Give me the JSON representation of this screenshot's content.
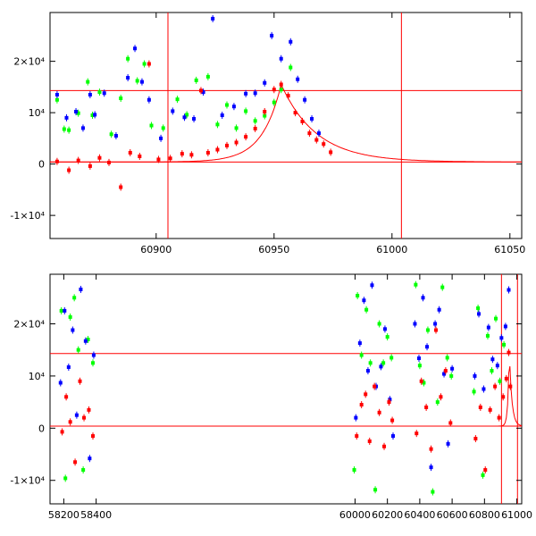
{
  "chart_data": [
    {
      "type": "scatter",
      "title": "",
      "xlabel": "",
      "ylabel": "",
      "xlim": [
        60855,
        61055
      ],
      "ylim": [
        -14500,
        29500
      ],
      "grid": false,
      "x_ticks": [
        {
          "value": 60900,
          "label": "60900"
        },
        {
          "value": 60950,
          "label": "60950"
        },
        {
          "value": 61000,
          "label": "61000"
        },
        {
          "value": 61050,
          "label": "61050"
        }
      ],
      "y_ticks": [
        {
          "value": -10000,
          "label": "-1×10⁴"
        },
        {
          "value": 0,
          "label": "0"
        },
        {
          "value": 10000,
          "label": "10⁴"
        },
        {
          "value": 20000,
          "label": "2×10⁴"
        }
      ],
      "reference_lines": {
        "horizontal": [
          14300,
          400
        ],
        "vertical": [
          60905,
          61004
        ]
      },
      "model_curve": {
        "peak_x": 60953,
        "peak_y": 15500,
        "baseline": 400,
        "rise_width": 8,
        "decay_width": 15
      },
      "series": [
        {
          "name": "green",
          "color": "#00ff00",
          "points": [
            [
              60858,
              12500
            ],
            [
              60861,
              6800
            ],
            [
              60863,
              6600
            ],
            [
              60867,
              9900
            ],
            [
              60871,
              16000
            ],
            [
              60873,
              9500
            ],
            [
              60876,
              14000
            ],
            [
              60881,
              5800
            ],
            [
              60885,
              12800
            ],
            [
              60888,
              20500
            ],
            [
              60892,
              16200
            ],
            [
              60895,
              19500
            ],
            [
              60898,
              7500
            ],
            [
              60903,
              7000
            ],
            [
              60909,
              12600
            ],
            [
              60913,
              9600
            ],
            [
              60917,
              16300
            ],
            [
              60922,
              17000
            ],
            [
              60926,
              7700
            ],
            [
              60930,
              11500
            ],
            [
              60934,
              7000
            ],
            [
              60938,
              10300
            ],
            [
              60942,
              8400
            ],
            [
              60946,
              9400
            ],
            [
              60950,
              12000
            ],
            [
              60953,
              14500
            ],
            [
              60957,
              18800
            ]
          ]
        },
        {
          "name": "blue",
          "color": "#0000ff",
          "points": [
            [
              60858,
              13500
            ],
            [
              60862,
              9000
            ],
            [
              60866,
              10200
            ],
            [
              60869,
              7000
            ],
            [
              60872,
              13500
            ],
            [
              60874,
              9600
            ],
            [
              60878,
              13800
            ],
            [
              60883,
              5500
            ],
            [
              60888,
              16800
            ],
            [
              60891,
              22500
            ],
            [
              60894,
              16000
            ],
            [
              60897,
              12500
            ],
            [
              60902,
              5000
            ],
            [
              60907,
              10300
            ],
            [
              60912,
              9100
            ],
            [
              60916,
              8800
            ],
            [
              60920,
              14000
            ],
            [
              60924,
              28300
            ],
            [
              60928,
              9500
            ],
            [
              60933,
              11200
            ],
            [
              60938,
              13700
            ],
            [
              60942,
              13800
            ],
            [
              60946,
              15800
            ],
            [
              60949,
              25000
            ],
            [
              60953,
              20500
            ],
            [
              60957,
              23800
            ],
            [
              60960,
              16500
            ],
            [
              60963,
              12500
            ],
            [
              60966,
              8800
            ],
            [
              60969,
              6000
            ]
          ]
        },
        {
          "name": "red",
          "color": "#ff0000",
          "points": [
            [
              60858,
              500
            ],
            [
              60863,
              -1200
            ],
            [
              60867,
              700
            ],
            [
              60872,
              -400
            ],
            [
              60876,
              1200
            ],
            [
              60880,
              300
            ],
            [
              60885,
              -4500
            ],
            [
              60889,
              2200
            ],
            [
              60893,
              1500
            ],
            [
              60897,
              19500
            ],
            [
              60901,
              900
            ],
            [
              60906,
              1100
            ],
            [
              60911,
              2000
            ],
            [
              60915,
              1800
            ],
            [
              60919,
              14300
            ],
            [
              60922,
              2200
            ],
            [
              60926,
              2800
            ],
            [
              60930,
              3600
            ],
            [
              60934,
              4200
            ],
            [
              60938,
              5300
            ],
            [
              60942,
              6900
            ],
            [
              60946,
              10200
            ],
            [
              60950,
              14500
            ],
            [
              60953,
              15500
            ],
            [
              60956,
              13300
            ],
            [
              60959,
              10000
            ],
            [
              60962,
              8300
            ],
            [
              60965,
              6000
            ],
            [
              60968,
              4700
            ],
            [
              60971,
              3900
            ],
            [
              60974,
              2300
            ]
          ]
        }
      ]
    },
    {
      "type": "scatter",
      "title": "",
      "xlabel": "",
      "ylabel": "",
      "xlim": [
        58115,
        61030
      ],
      "ylim": [
        -14500,
        29500
      ],
      "grid": false,
      "x_ticks": [
        {
          "value": 58200,
          "label": "58200"
        },
        {
          "value": 58400,
          "label": "58400"
        },
        {
          "value": 60000,
          "label": "60000"
        },
        {
          "value": 60200,
          "label": "60200"
        },
        {
          "value": 60400,
          "label": "60400"
        },
        {
          "value": 60600,
          "label": "60600"
        },
        {
          "value": 60800,
          "label": "60800"
        },
        {
          "value": 61000,
          "label": "61000"
        }
      ],
      "y_ticks": [
        {
          "value": -10000,
          "label": "-1×10⁴"
        },
        {
          "value": 0,
          "label": "0"
        },
        {
          "value": 10000,
          "label": "10⁴"
        },
        {
          "value": 20000,
          "label": "2×10⁴"
        }
      ],
      "reference_lines": {
        "horizontal": [
          14300,
          400
        ],
        "vertical": [
          60905,
          61004
        ]
      },
      "model_curve": {
        "peak_x": 60953,
        "peak_y": 15500,
        "baseline": 400,
        "rise_width": 8,
        "decay_width": 15
      },
      "series": [
        {
          "name": "green",
          "color": "#00ff00",
          "points": [
            [
              58185,
              22500
            ],
            [
              58210,
              -9600
            ],
            [
              58240,
              21300
            ],
            [
              58265,
              25000
            ],
            [
              58290,
              15000
            ],
            [
              58320,
              -8000
            ],
            [
              58350,
              17000
            ],
            [
              58380,
              12500
            ],
            [
              59995,
              -8000
            ],
            [
              60015,
              25400
            ],
            [
              60040,
              14000
            ],
            [
              60070,
              22700
            ],
            [
              60095,
              12500
            ],
            [
              60125,
              -11800
            ],
            [
              60150,
              20000
            ],
            [
              60175,
              12500
            ],
            [
              60200,
              17500
            ],
            [
              60225,
              13500
            ],
            [
              60375,
              27500
            ],
            [
              60400,
              12000
            ],
            [
              60425,
              8700
            ],
            [
              60450,
              18800
            ],
            [
              60480,
              -12200
            ],
            [
              60510,
              5000
            ],
            [
              60540,
              27000
            ],
            [
              60570,
              13500
            ],
            [
              60595,
              10000
            ],
            [
              60735,
              7000
            ],
            [
              60760,
              23000
            ],
            [
              60790,
              -9000
            ],
            [
              60820,
              17700
            ],
            [
              60845,
              11000
            ],
            [
              60870,
              21000
            ],
            [
              60895,
              9000
            ],
            [
              60920,
              16000
            ]
          ]
        },
        {
          "name": "blue",
          "color": "#0000ff",
          "points": [
            [
              58180,
              8700
            ],
            [
              58205,
              22500
            ],
            [
              58230,
              11700
            ],
            [
              58255,
              18800
            ],
            [
              58280,
              2500
            ],
            [
              58305,
              26600
            ],
            [
              58335,
              16700
            ],
            [
              58360,
              -5800
            ],
            [
              58385,
              14000
            ],
            [
              60005,
              2000
            ],
            [
              60030,
              16300
            ],
            [
              60055,
              24500
            ],
            [
              60080,
              11000
            ],
            [
              60105,
              27400
            ],
            [
              60130,
              8000
            ],
            [
              60160,
              11800
            ],
            [
              60185,
              19000
            ],
            [
              60215,
              5500
            ],
            [
              60235,
              -1500
            ],
            [
              60370,
              20000
            ],
            [
              60395,
              13400
            ],
            [
              60420,
              25000
            ],
            [
              60445,
              15600
            ],
            [
              60470,
              -7500
            ],
            [
              60495,
              20000
            ],
            [
              60520,
              22700
            ],
            [
              60550,
              10400
            ],
            [
              60575,
              -3000
            ],
            [
              60600,
              11400
            ],
            [
              60740,
              10000
            ],
            [
              60765,
              21900
            ],
            [
              60795,
              7500
            ],
            [
              60825,
              19300
            ],
            [
              60850,
              13200
            ],
            [
              60880,
              12000
            ],
            [
              60905,
              17300
            ],
            [
              60930,
              19500
            ],
            [
              60950,
              26500
            ]
          ]
        },
        {
          "name": "red",
          "color": "#ff0000",
          "points": [
            [
              58190,
              -700
            ],
            [
              58215,
              6000
            ],
            [
              58240,
              1200
            ],
            [
              58270,
              -6500
            ],
            [
              58300,
              9000
            ],
            [
              58325,
              2000
            ],
            [
              58355,
              3500
            ],
            [
              58380,
              -1500
            ],
            [
              60010,
              -1500
            ],
            [
              60040,
              4500
            ],
            [
              60065,
              6500
            ],
            [
              60090,
              -2500
            ],
            [
              60120,
              8000
            ],
            [
              60150,
              3000
            ],
            [
              60180,
              -3500
            ],
            [
              60210,
              5000
            ],
            [
              60230,
              1500
            ],
            [
              60380,
              -1000
            ],
            [
              60410,
              9000
            ],
            [
              60440,
              4000
            ],
            [
              60470,
              -4000
            ],
            [
              60500,
              18800
            ],
            [
              60530,
              6000
            ],
            [
              60560,
              11000
            ],
            [
              60590,
              1000
            ],
            [
              60745,
              -2000
            ],
            [
              60775,
              4000
            ],
            [
              60805,
              -8000
            ],
            [
              60835,
              3500
            ],
            [
              60865,
              8000
            ],
            [
              60890,
              2000
            ],
            [
              60915,
              6000
            ],
            [
              60935,
              9500
            ],
            [
              60950,
              14500
            ],
            [
              60960,
              8000
            ]
          ]
        }
      ]
    }
  ]
}
